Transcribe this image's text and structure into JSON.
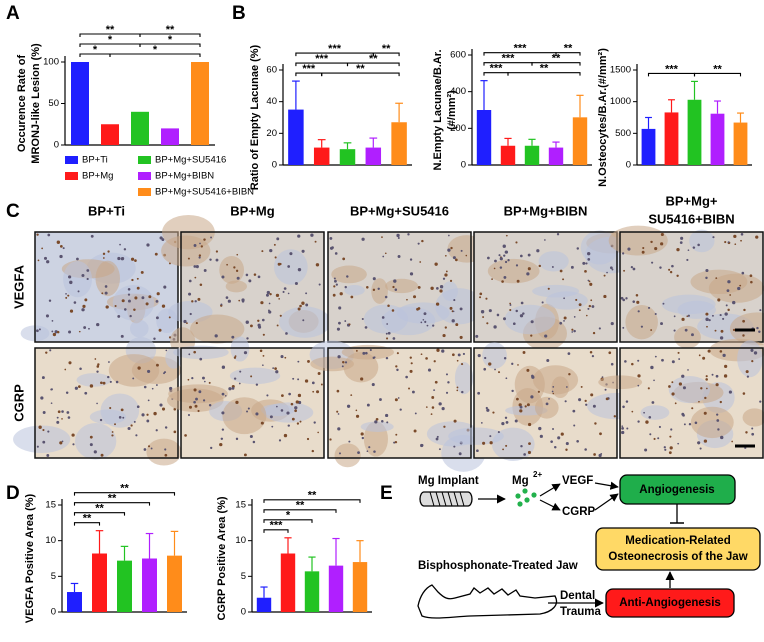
{
  "panel_letters": [
    "A",
    "B",
    "C",
    "D",
    "E"
  ],
  "groups": [
    {
      "name": "BP+Ti",
      "color": "#1f1fff"
    },
    {
      "name": "BP+Mg",
      "color": "#ff1a1a"
    },
    {
      "name": "BP+Mg+SU5416",
      "color": "#22c322"
    },
    {
      "name": "BP+Mg+BIBN",
      "color": "#b01fff"
    },
    {
      "name": "BP+Mg+SU5416+BIBN",
      "color": "#ff8c1a"
    }
  ],
  "chart_data": [
    {
      "type": "bar",
      "ylabel": [
        "Occurence Rate of",
        "MRONJ-like Lesion (%)"
      ],
      "values": [
        100,
        25,
        40,
        20,
        100
      ],
      "ylim": [
        0,
        100
      ],
      "yticks": [
        0,
        50,
        100
      ],
      "brackets": [
        {
          "from": 0,
          "to": 1,
          "label": "*"
        },
        {
          "from": 1,
          "to": 4,
          "label": "*"
        },
        {
          "from": 0,
          "to": 2,
          "label": "*"
        },
        {
          "from": 2,
          "to": 4,
          "label": "*"
        },
        {
          "from": 0,
          "to": 2,
          "label": "**"
        },
        {
          "from": 2,
          "to": 4,
          "label": "**"
        }
      ]
    },
    {
      "type": "bar",
      "ylabel": [
        "Ratio of Empty Lacunae (%)"
      ],
      "values": [
        35,
        11,
        10,
        11,
        27
      ],
      "errors": [
        18,
        5,
        4,
        6,
        12
      ],
      "ylim": [
        0,
        60
      ],
      "yticks": [
        0,
        20,
        40,
        60
      ],
      "brackets": [
        {
          "from": 0,
          "to": 1,
          "label": "***"
        },
        {
          "from": 1,
          "to": 4,
          "label": "**"
        },
        {
          "from": 0,
          "to": 2,
          "label": "***"
        },
        {
          "from": 2,
          "to": 4,
          "label": "**"
        },
        {
          "from": 0,
          "to": 3,
          "label": "***"
        },
        {
          "from": 3,
          "to": 4,
          "label": "**"
        }
      ]
    },
    {
      "type": "bar",
      "ylabel": [
        "N.Empty Lacunae/B.Ar.",
        "(#/mm²)"
      ],
      "values": [
        300,
        105,
        105,
        95,
        260
      ],
      "errors": [
        160,
        40,
        35,
        30,
        120
      ],
      "ylim": [
        0,
        600
      ],
      "yticks": [
        0,
        200,
        400,
        600
      ],
      "brackets": [
        {
          "from": 0,
          "to": 1,
          "label": "***"
        },
        {
          "from": 1,
          "to": 4,
          "label": "**"
        },
        {
          "from": 0,
          "to": 2,
          "label": "***"
        },
        {
          "from": 2,
          "to": 4,
          "label": "**"
        },
        {
          "from": 0,
          "to": 3,
          "label": "***"
        },
        {
          "from": 3,
          "to": 4,
          "label": "**"
        }
      ]
    },
    {
      "type": "bar",
      "ylabel": [
        "N.Osteocytes/B.Ar.(#/mm²)"
      ],
      "values": [
        570,
        830,
        1030,
        810,
        670
      ],
      "errors": [
        180,
        200,
        290,
        200,
        150
      ],
      "ylim": [
        0,
        1500
      ],
      "yticks": [
        0,
        500,
        1000,
        1500
      ],
      "brackets": [
        {
          "from": 0,
          "to": 2,
          "label": "***"
        },
        {
          "from": 2,
          "to": 4,
          "label": "**"
        }
      ]
    },
    {
      "type": "bar",
      "ylabel": [
        "VEGFA Positive Area (%)"
      ],
      "values": [
        2.8,
        8.2,
        7.2,
        7.5,
        7.9
      ],
      "errors": [
        1.2,
        3.2,
        2,
        3.5,
        3.4
      ],
      "ylim": [
        0,
        15
      ],
      "yticks": [
        0,
        5,
        10,
        15
      ],
      "brackets": [
        {
          "from": 0,
          "to": 1,
          "label": "**"
        },
        {
          "from": 0,
          "to": 2,
          "label": "**"
        },
        {
          "from": 0,
          "to": 3,
          "label": "**"
        },
        {
          "from": 0,
          "to": 4,
          "label": "**"
        }
      ]
    },
    {
      "type": "bar",
      "ylabel": [
        "CGRP Positive Area (%)"
      ],
      "values": [
        2,
        8.2,
        5.7,
        6.5,
        7
      ],
      "errors": [
        1.5,
        2.2,
        2,
        3.8,
        3
      ],
      "ylim": [
        0,
        15
      ],
      "yticks": [
        0,
        5,
        10,
        15
      ],
      "brackets": [
        {
          "from": 0,
          "to": 1,
          "label": "***"
        },
        {
          "from": 0,
          "to": 2,
          "label": "*"
        },
        {
          "from": 0,
          "to": 3,
          "label": "**"
        },
        {
          "from": 0,
          "to": 4,
          "label": "**"
        }
      ]
    }
  ],
  "micrographs": {
    "columns": [
      [
        "BP+Ti"
      ],
      [
        "BP+Mg"
      ],
      [
        "BP+Mg+SU5416"
      ],
      [
        "BP+Mg+BIBN"
      ],
      [
        "BP+Mg+",
        "SU5416+BIBN"
      ]
    ],
    "rows": [
      "VEGFA",
      "CGRP"
    ]
  },
  "diagram": {
    "implant": "Mg Implant",
    "ion": "Mg",
    "charge": "2+",
    "vegf": "VEGF",
    "cgrp": "CGRP",
    "angiogenesis": "Angiogenesis",
    "mronj": [
      "Medication-Related",
      "Osteonecrosis of the Jaw"
    ],
    "jaw": "Bisphosphonate-Treated Jaw",
    "trauma": [
      "Dental",
      "Trauma"
    ],
    "anti": "Anti-Angiogenesis"
  }
}
